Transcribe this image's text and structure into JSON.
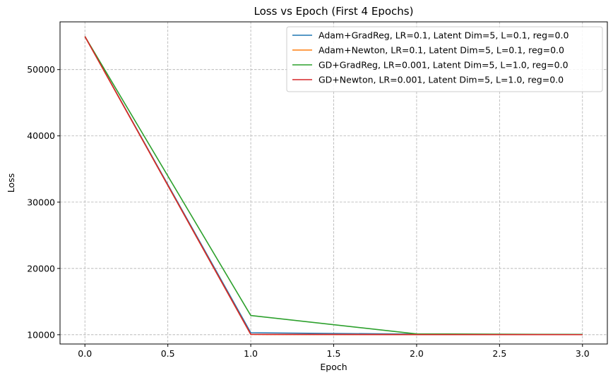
{
  "chart_data": {
    "type": "line",
    "title": "Loss vs Epoch (First 4 Epochs)",
    "xlabel": "Epoch",
    "ylabel": "Loss",
    "xlim": [
      -0.15,
      3.15
    ],
    "ylim": [
      8600,
      57200
    ],
    "x_ticks": [
      0.0,
      0.5,
      1.0,
      1.5,
      2.0,
      2.5,
      3.0
    ],
    "x_tick_labels": [
      "0.0",
      "0.5",
      "1.0",
      "1.5",
      "2.0",
      "2.5",
      "3.0"
    ],
    "y_ticks": [
      10000,
      20000,
      30000,
      40000,
      50000
    ],
    "y_tick_labels": [
      "10000",
      "20000",
      "30000",
      "40000",
      "50000"
    ],
    "grid": true,
    "grid_style": "dashed",
    "legend_position": "top-right",
    "x": [
      0,
      1,
      2,
      3
    ],
    "series": [
      {
        "name": "Adam+GradReg, LR=0.1, Latent Dim=5, L=0.1, reg=0.0",
        "color": "#1f77b4",
        "values": [
          55000,
          10300,
          10080,
          10030
        ]
      },
      {
        "name": "Adam+Newton, LR=0.1, Latent Dim=5, L=0.1, reg=0.0",
        "color": "#ff7f0e",
        "values": [
          55000,
          10050,
          10020,
          10010
        ]
      },
      {
        "name": "GD+GradReg, LR=0.001, Latent Dim=5, L=1.0, reg=0.0",
        "color": "#2ca02c",
        "values": [
          55000,
          12900,
          10120,
          10040
        ]
      },
      {
        "name": "GD+Newton, LR=0.001, Latent Dim=5, L=1.0, reg=0.0",
        "color": "#d62728",
        "values": [
          55000,
          10050,
          10020,
          10010
        ]
      }
    ]
  }
}
